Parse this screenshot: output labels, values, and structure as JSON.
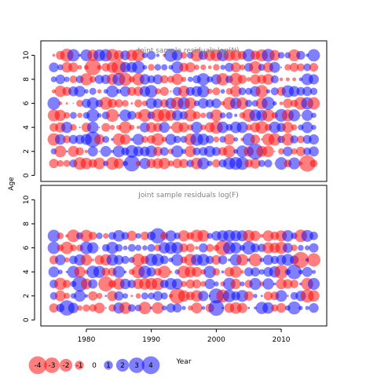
{
  "colors": {
    "positive": "#0000FF",
    "negative": "#FF0000",
    "fill_opacity": 0.5
  },
  "chart_data": [
    {
      "type": "scatter",
      "title": "Joint sample residuals log(N)",
      "xlabel": "Year",
      "ylabel": "Age",
      "x_range": [
        1975,
        2015
      ],
      "ages": [
        1,
        2,
        3,
        4,
        5,
        6,
        7,
        8,
        9,
        10
      ],
      "xlim": [
        1973,
        2017
      ],
      "ylim": [
        -0.5,
        11.2
      ],
      "y_ticks": [
        0,
        2,
        4,
        6,
        8,
        10
      ],
      "seed": 7
    },
    {
      "type": "scatter",
      "title": "Joint sample residuals log(F)",
      "xlabel": "Year",
      "ylabel": "Age",
      "x_range": [
        1975,
        2015
      ],
      "ages": [
        1,
        2,
        3,
        4,
        5,
        6,
        7
      ],
      "xlim": [
        1973,
        2017
      ],
      "ylim": [
        -0.5,
        11.2
      ],
      "y_ticks": [
        0,
        2,
        4,
        6,
        8,
        10
      ],
      "x_ticks": [
        1980,
        1990,
        2000,
        2010
      ],
      "seed": 29
    }
  ],
  "labels": {
    "ylabel": "Age",
    "xlabel": "Year",
    "title_top": "Joint sample residuals log(N)",
    "title_bottom": "Joint sample residuals log(F)"
  },
  "legend": {
    "items": [
      {
        "label": "-4",
        "value": -4
      },
      {
        "label": "-3",
        "value": -3
      },
      {
        "label": "-2",
        "value": -2
      },
      {
        "label": "-1",
        "value": -1
      },
      {
        "label": "0",
        "value": 0
      },
      {
        "label": "1",
        "value": 1
      },
      {
        "label": "2",
        "value": 2
      },
      {
        "label": "3",
        "value": 3
      },
      {
        "label": "4",
        "value": 4
      }
    ],
    "title": "Year"
  }
}
